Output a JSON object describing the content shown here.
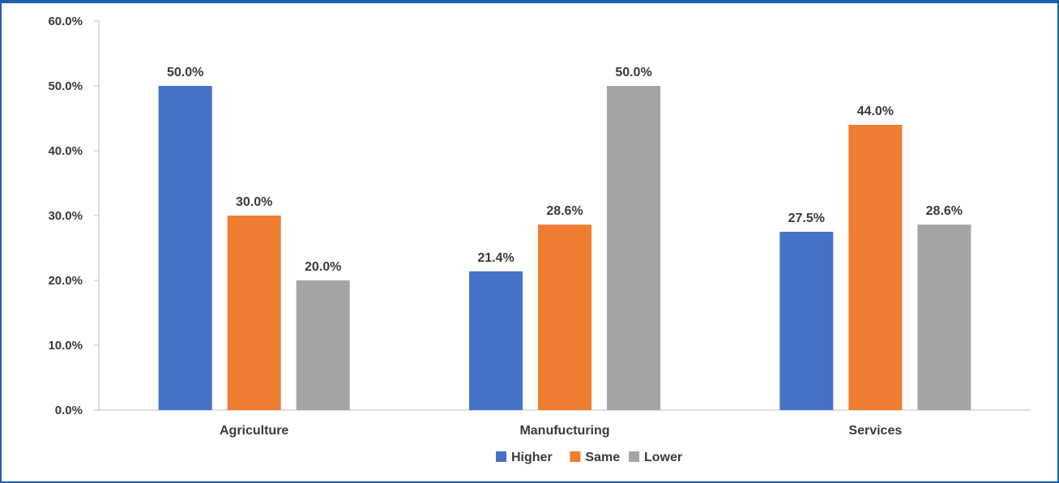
{
  "chart_data": {
    "type": "bar",
    "categories": [
      "Agriculture",
      "Manufucturing",
      "Services"
    ],
    "series": [
      {
        "name": "Higher",
        "color": "#4472c4",
        "values": [
          50.0,
          21.4,
          27.5
        ],
        "labels": [
          "50.0%",
          "21.4%",
          "27.5%"
        ]
      },
      {
        "name": "Same",
        "color": "#ed7d31",
        "values": [
          30.0,
          28.6,
          44.0
        ],
        "labels": [
          "30.0%",
          "28.6%",
          "44.0%"
        ]
      },
      {
        "name": "Lower",
        "color": "#a5a5a5",
        "values": [
          20.0,
          50.0,
          28.6
        ],
        "labels": [
          "20.0%",
          "50.0%",
          "28.6%"
        ]
      }
    ],
    "yticks": [
      "0.0%",
      "10.0%",
      "20.0%",
      "30.0%",
      "40.0%",
      "50.0%",
      "60.0%"
    ],
    "ylim": [
      0,
      60
    ],
    "title": "",
    "xlabel": "",
    "ylabel": "",
    "grid": false,
    "legend_position": "bottom"
  }
}
